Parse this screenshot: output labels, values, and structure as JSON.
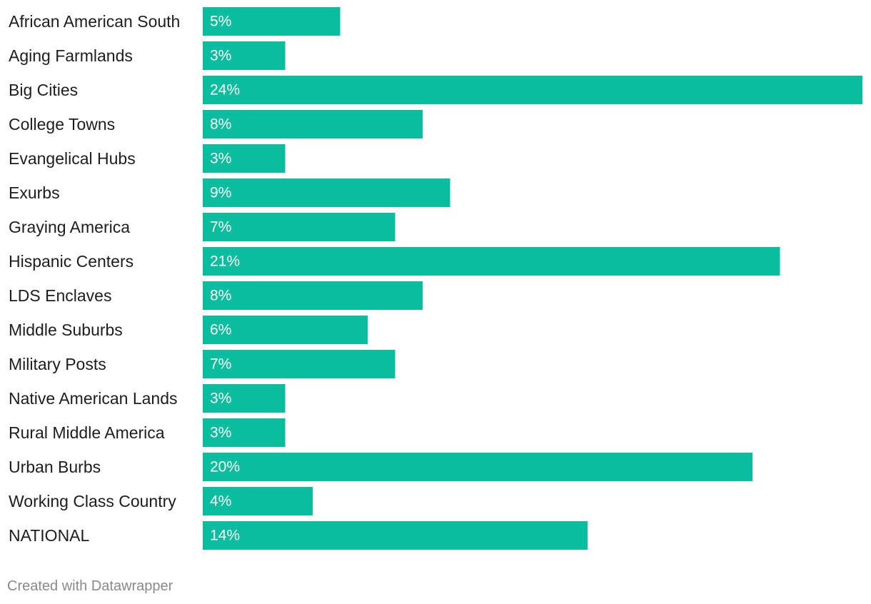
{
  "chart_data": {
    "type": "bar",
    "orientation": "horizontal",
    "categories": [
      "African American South",
      "Aging Farmlands",
      "Big Cities",
      "College Towns",
      "Evangelical Hubs",
      "Exurbs",
      "Graying America",
      "Hispanic Centers",
      "LDS Enclaves",
      "Middle Suburbs",
      "Military Posts",
      "Native American Lands",
      "Rural Middle America",
      "Urban Burbs",
      "Working Class Country",
      "NATIONAL"
    ],
    "values": [
      5,
      3,
      24,
      8,
      3,
      9,
      7,
      21,
      8,
      6,
      7,
      3,
      3,
      20,
      4,
      14
    ],
    "value_labels": [
      "5%",
      "3%",
      "24%",
      "8%",
      "3%",
      "9%",
      "7%",
      "21%",
      "8%",
      "6%",
      "7%",
      "3%",
      "3%",
      "20%",
      "4%",
      "14%"
    ],
    "unit": "%",
    "xlim": [
      0,
      24
    ],
    "title": "",
    "xlabel": "",
    "ylabel": "",
    "grid": false,
    "legend": "none",
    "bar_color": "#0bbd9f"
  },
  "footer": {
    "credit": "Created with Datawrapper"
  }
}
